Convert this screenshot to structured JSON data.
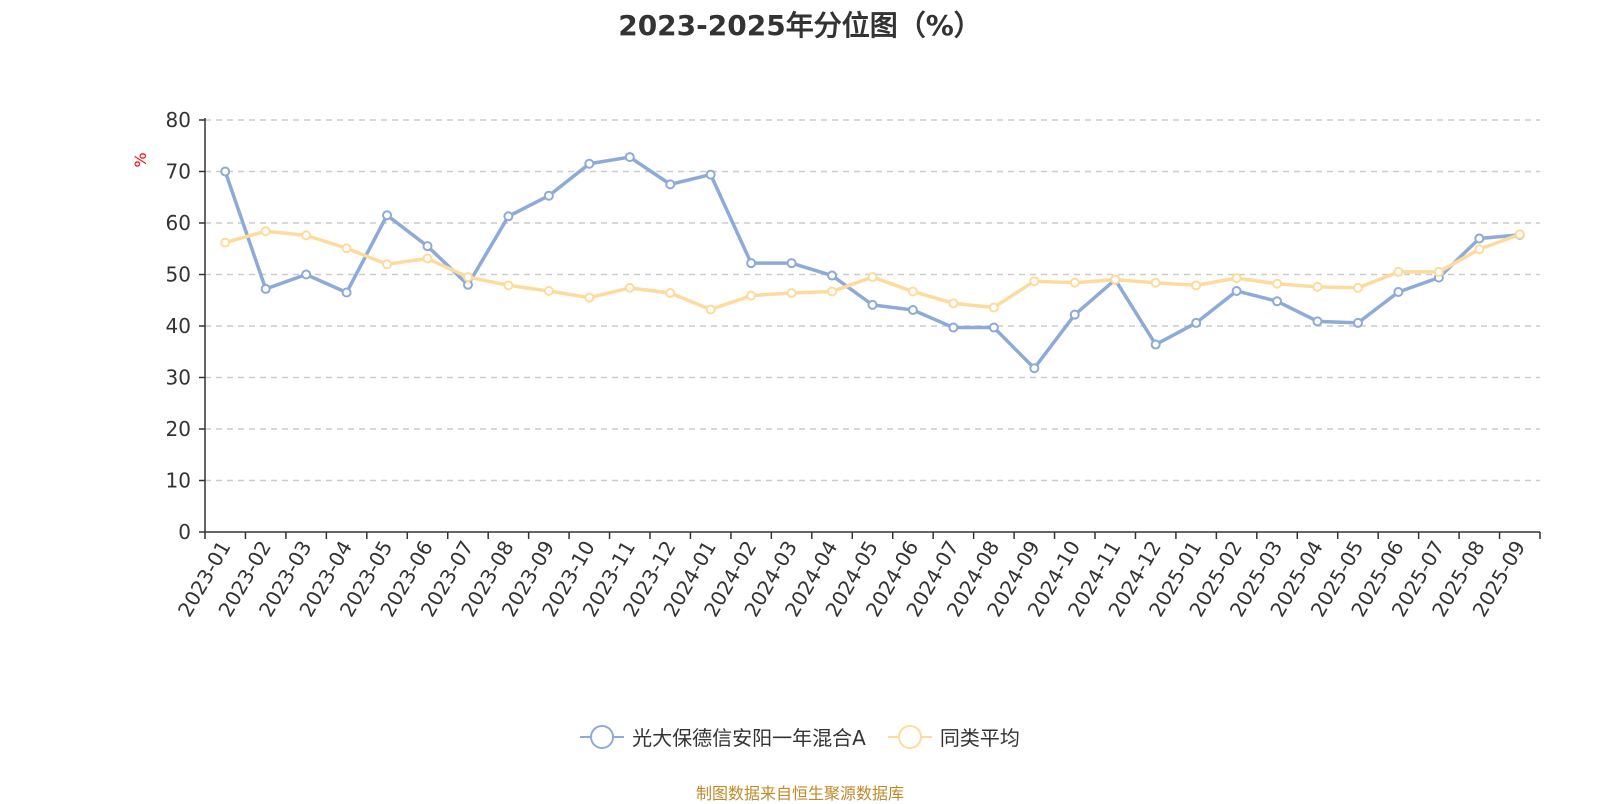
{
  "title": "2023-2025年分位图（%）",
  "source": "制图数据来自恒生聚源数据库",
  "chart_data": {
    "type": "line",
    "title": "2023-2025年分位图（%）",
    "xlabel": "",
    "ylabel": "%",
    "ylim": [
      0,
      80
    ],
    "yticks": [
      0,
      10,
      20,
      30,
      40,
      50,
      60,
      70,
      80
    ],
    "grid": true,
    "legend_position": "bottom",
    "categories": [
      "2023-01",
      "2023-02",
      "2023-03",
      "2023-04",
      "2023-05",
      "2023-06",
      "2023-07",
      "2023-08",
      "2023-09",
      "2023-10",
      "2023-11",
      "2023-12",
      "2024-01",
      "2024-02",
      "2024-03",
      "2024-04",
      "2024-05",
      "2024-06",
      "2024-07",
      "2024-08",
      "2024-09",
      "2024-10",
      "2024-11",
      "2024-12",
      "2025-01",
      "2025-02",
      "2025-03",
      "2025-04",
      "2025-05",
      "2025-06",
      "2025-07",
      "2025-08",
      "2025-09"
    ],
    "series": [
      {
        "name": "光大保德信安阳一年混合A",
        "color": "#8eaad8",
        "values": [
          70.0,
          47.2,
          50.0,
          46.5,
          61.5,
          55.5,
          48.0,
          61.3,
          65.3,
          71.5,
          72.8,
          67.5,
          69.4,
          52.2,
          52.2,
          49.8,
          44.1,
          43.1,
          39.7,
          39.7,
          31.8,
          42.2,
          49.0,
          36.4,
          40.6,
          46.8,
          44.8,
          40.9,
          40.6,
          46.6,
          49.4,
          57.0,
          57.7
        ]
      },
      {
        "name": "同类平均",
        "color": "#fedb9c",
        "values": [
          56.2,
          58.4,
          57.6,
          55.1,
          52.0,
          53.1,
          49.5,
          47.9,
          46.8,
          45.5,
          47.4,
          46.4,
          43.2,
          45.9,
          46.4,
          46.7,
          49.5,
          46.7,
          44.4,
          43.6,
          48.7,
          48.4,
          49.0,
          48.4,
          47.9,
          49.3,
          48.2,
          47.6,
          47.4,
          50.5,
          50.5,
          54.9,
          57.8
        ]
      }
    ]
  }
}
